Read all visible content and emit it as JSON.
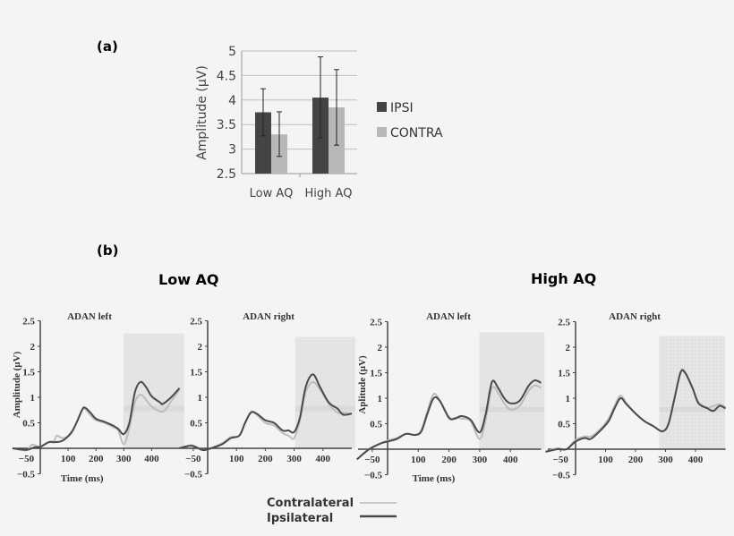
{
  "panel_labels": {
    "a": "(a)",
    "b": "(b)"
  },
  "group_titles": {
    "low": "Low AQ",
    "high": "High AQ"
  },
  "legend_b": {
    "contra": "Contralateral",
    "ipsi": "Ipsilateral"
  },
  "colors": {
    "ipsi": "#444444",
    "contra": "#b8b8b8",
    "ipsi_line": "#4a4a4a",
    "contra_line": "#bdbdbd",
    "shade": "#e6e6e6"
  },
  "chart_data": [
    {
      "type": "bar",
      "ylabel": "Amplitude (µV)",
      "ylim": [
        2.5,
        5
      ],
      "yticks": [
        "2.5",
        "3",
        "3.5",
        "4",
        "4.5",
        "5"
      ],
      "grid": true,
      "legend_position": "right",
      "categories": [
        "Low AQ",
        "High AQ"
      ],
      "series": [
        {
          "name": "IPSI",
          "values": [
            3.75,
            4.05
          ],
          "error_low": [
            3.27,
            3.23
          ],
          "error_high": [
            4.23,
            4.88
          ]
        },
        {
          "name": "CONTRA",
          "values": [
            3.3,
            3.85
          ],
          "error_low": [
            2.85,
            3.08
          ],
          "error_high": [
            3.76,
            4.62
          ]
        }
      ]
    },
    {
      "type": "line",
      "group": "Low AQ",
      "title": "ADAN left",
      "xlabel": "Time (ms)",
      "ylabel": "Amplitude (µV)",
      "xlim": [
        -100,
        500
      ],
      "ylim": [
        -0.5,
        2.5
      ],
      "xticks": [
        "−50",
        "100",
        "200",
        "300",
        "400"
      ],
      "yticks": [
        "−0.5",
        "0.5",
        "1",
        "1.5",
        "2",
        "2.5"
      ],
      "shaded_window": [
        300,
        500
      ],
      "series": [
        {
          "name": "Contralateral",
          "x": [
            -100,
            -50,
            -30,
            0,
            30,
            50,
            60,
            80,
            110,
            130,
            150,
            160,
            180,
            200,
            230,
            260,
            280,
            300,
            320,
            340,
            360,
            380,
            400,
            440,
            470,
            500
          ],
          "y": [
            0,
            -0.04,
            0.07,
            0.03,
            0.12,
            0.15,
            0.25,
            0.2,
            0.28,
            0.5,
            0.75,
            0.78,
            0.65,
            0.55,
            0.5,
            0.42,
            0.35,
            0.08,
            0.4,
            0.9,
            1.05,
            0.95,
            0.82,
            0.72,
            0.92,
            1.15
          ]
        },
        {
          "name": "Ipsilateral",
          "x": [
            -100,
            -50,
            -20,
            0,
            30,
            50,
            80,
            110,
            130,
            150,
            160,
            180,
            200,
            230,
            260,
            280,
            300,
            320,
            340,
            360,
            380,
            400,
            430,
            440,
            470,
            500
          ],
          "y": [
            0,
            -0.03,
            0.02,
            0.03,
            0.12,
            0.12,
            0.15,
            0.3,
            0.5,
            0.75,
            0.8,
            0.7,
            0.58,
            0.52,
            0.45,
            0.38,
            0.28,
            0.5,
            1.1,
            1.3,
            1.2,
            1.02,
            0.9,
            0.87,
            1.0,
            1.18
          ]
        }
      ]
    },
    {
      "type": "line",
      "group": "Low AQ",
      "title": "ADAN right",
      "xlim": [
        -100,
        500
      ],
      "ylim": [
        -0.5,
        2.5
      ],
      "xticks": [
        "−50",
        "100",
        "200",
        "300",
        "400"
      ],
      "yticks": [
        "−0.5",
        "0.5",
        "1",
        "1.5",
        "2",
        "2.5"
      ],
      "shaded_window": [
        305,
        500
      ],
      "series": [
        {
          "name": "Contralateral",
          "x": [
            -100,
            -60,
            -40,
            -20,
            0,
            50,
            80,
            110,
            130,
            150,
            170,
            200,
            230,
            260,
            280,
            300,
            320,
            340,
            365,
            390,
            420,
            450,
            470,
            500
          ],
          "y": [
            0,
            0.06,
            0.03,
            -0.03,
            -0.02,
            0.1,
            0.22,
            0.25,
            0.5,
            0.72,
            0.66,
            0.5,
            0.45,
            0.3,
            0.25,
            0.2,
            0.55,
            1.1,
            1.3,
            1.15,
            0.88,
            0.7,
            0.7,
            0.68
          ]
        },
        {
          "name": "Ipsilateral",
          "x": [
            -100,
            -60,
            -40,
            -20,
            0,
            50,
            80,
            110,
            130,
            150,
            170,
            200,
            230,
            260,
            280,
            300,
            320,
            340,
            365,
            390,
            420,
            450,
            470,
            500
          ],
          "y": [
            0,
            0.05,
            0.02,
            -0.03,
            -0.02,
            0.08,
            0.2,
            0.25,
            0.5,
            0.7,
            0.68,
            0.55,
            0.5,
            0.35,
            0.35,
            0.32,
            0.6,
            1.2,
            1.45,
            1.2,
            0.9,
            0.78,
            0.66,
            0.68
          ]
        }
      ]
    },
    {
      "type": "line",
      "group": "High AQ",
      "title": "ADAN left",
      "xlabel": "Time (ms)",
      "ylabel": "Aplitude (µV)",
      "xlim": [
        -100,
        500
      ],
      "ylim": [
        -0.5,
        2.5
      ],
      "xticks": [
        "−50",
        "100",
        "200",
        "300",
        "400"
      ],
      "yticks": [
        "−0.5",
        "0.5",
        "1",
        "1.5",
        "2",
        "2.5"
      ],
      "shaded_window": [
        300,
        500
      ],
      "series": [
        {
          "name": "Contralateral",
          "x": [
            -100,
            -60,
            -20,
            0,
            30,
            60,
            90,
            110,
            130,
            150,
            170,
            200,
            220,
            240,
            270,
            300,
            320,
            340,
            360,
            380,
            400,
            430,
            460,
            480,
            500
          ],
          "y": [
            -0.2,
            0.0,
            0.12,
            0.17,
            0.22,
            0.3,
            0.28,
            0.38,
            0.75,
            1.08,
            0.95,
            0.6,
            0.62,
            0.6,
            0.55,
            0.2,
            0.6,
            1.2,
            1.1,
            0.9,
            0.78,
            0.85,
            1.15,
            1.25,
            1.2
          ]
        },
        {
          "name": "Ipsilateral",
          "x": [
            -100,
            -60,
            -20,
            0,
            30,
            60,
            90,
            110,
            130,
            150,
            170,
            200,
            220,
            240,
            270,
            300,
            320,
            340,
            360,
            380,
            400,
            430,
            460,
            480,
            500
          ],
          "y": [
            -0.2,
            0.0,
            0.12,
            0.15,
            0.2,
            0.3,
            0.28,
            0.35,
            0.7,
            1.0,
            0.95,
            0.62,
            0.6,
            0.65,
            0.58,
            0.33,
            0.7,
            1.32,
            1.2,
            1.0,
            0.9,
            0.95,
            1.25,
            1.35,
            1.3
          ]
        }
      ]
    },
    {
      "type": "line",
      "group": "High AQ",
      "title": "ADAN right",
      "xlim": [
        -100,
        500
      ],
      "ylim": [
        -0.5,
        2.5
      ],
      "xticks": [
        "−50",
        "100",
        "200",
        "300",
        "400"
      ],
      "yticks": [
        "−0.5",
        "0.5",
        "1",
        "1.5",
        "2",
        "2.5"
      ],
      "shaded_window": [
        280,
        500
      ],
      "series": [
        {
          "name": "Contralateral",
          "x": [
            -100,
            -60,
            -30,
            0,
            30,
            50,
            80,
            110,
            130,
            150,
            170,
            200,
            230,
            260,
            290,
            310,
            330,
            350,
            365,
            390,
            410,
            440,
            460,
            480,
            500
          ],
          "y": [
            -0.05,
            0.02,
            0.0,
            0.18,
            0.25,
            0.25,
            0.38,
            0.6,
            0.85,
            1.05,
            0.9,
            0.7,
            0.55,
            0.45,
            0.35,
            0.5,
            1.0,
            1.52,
            1.52,
            1.2,
            0.92,
            0.82,
            0.85,
            0.88,
            0.82
          ]
        },
        {
          "name": "Ipsilateral",
          "x": [
            -100,
            -60,
            -30,
            0,
            30,
            50,
            80,
            110,
            130,
            150,
            170,
            200,
            230,
            260,
            290,
            310,
            330,
            350,
            365,
            390,
            410,
            440,
            460,
            480,
            500
          ],
          "y": [
            -0.05,
            0.0,
            0.0,
            0.15,
            0.22,
            0.2,
            0.35,
            0.55,
            0.8,
            1.0,
            0.88,
            0.7,
            0.55,
            0.45,
            0.35,
            0.5,
            1.0,
            1.5,
            1.5,
            1.2,
            0.9,
            0.8,
            0.75,
            0.85,
            0.8
          ]
        }
      ]
    }
  ]
}
